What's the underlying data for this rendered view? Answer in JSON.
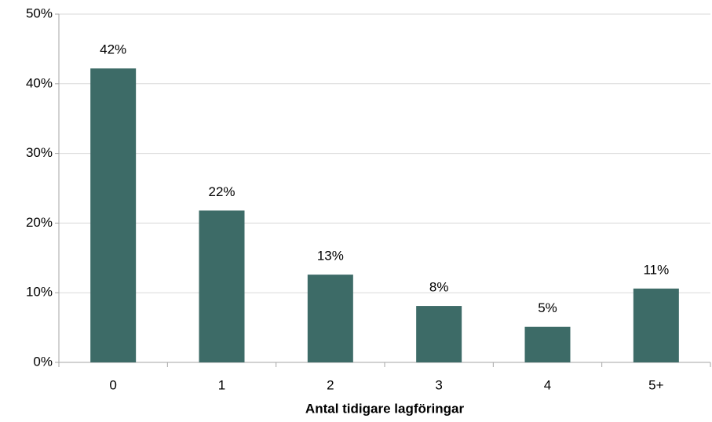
{
  "chart_data": {
    "type": "bar",
    "x_label": "Antal tidigare lagföringar",
    "categories": [
      "0",
      "1",
      "2",
      "3",
      "4",
      "5+"
    ],
    "values": [
      42.2,
      21.8,
      12.6,
      8.1,
      5.1,
      10.6
    ],
    "value_labels": [
      "42%",
      "22%",
      "13%",
      "8%",
      "5%",
      "11%"
    ],
    "color": "#3d6b67",
    "ylim": [
      0,
      50
    ],
    "yticks": [
      {
        "value": 0,
        "label": "0%"
      },
      {
        "value": 10,
        "label": "10%"
      },
      {
        "value": 20,
        "label": "20%"
      },
      {
        "value": 30,
        "label": "30%"
      },
      {
        "value": 40,
        "label": "40%"
      },
      {
        "value": 50,
        "label": "50%"
      }
    ],
    "grid": true
  }
}
